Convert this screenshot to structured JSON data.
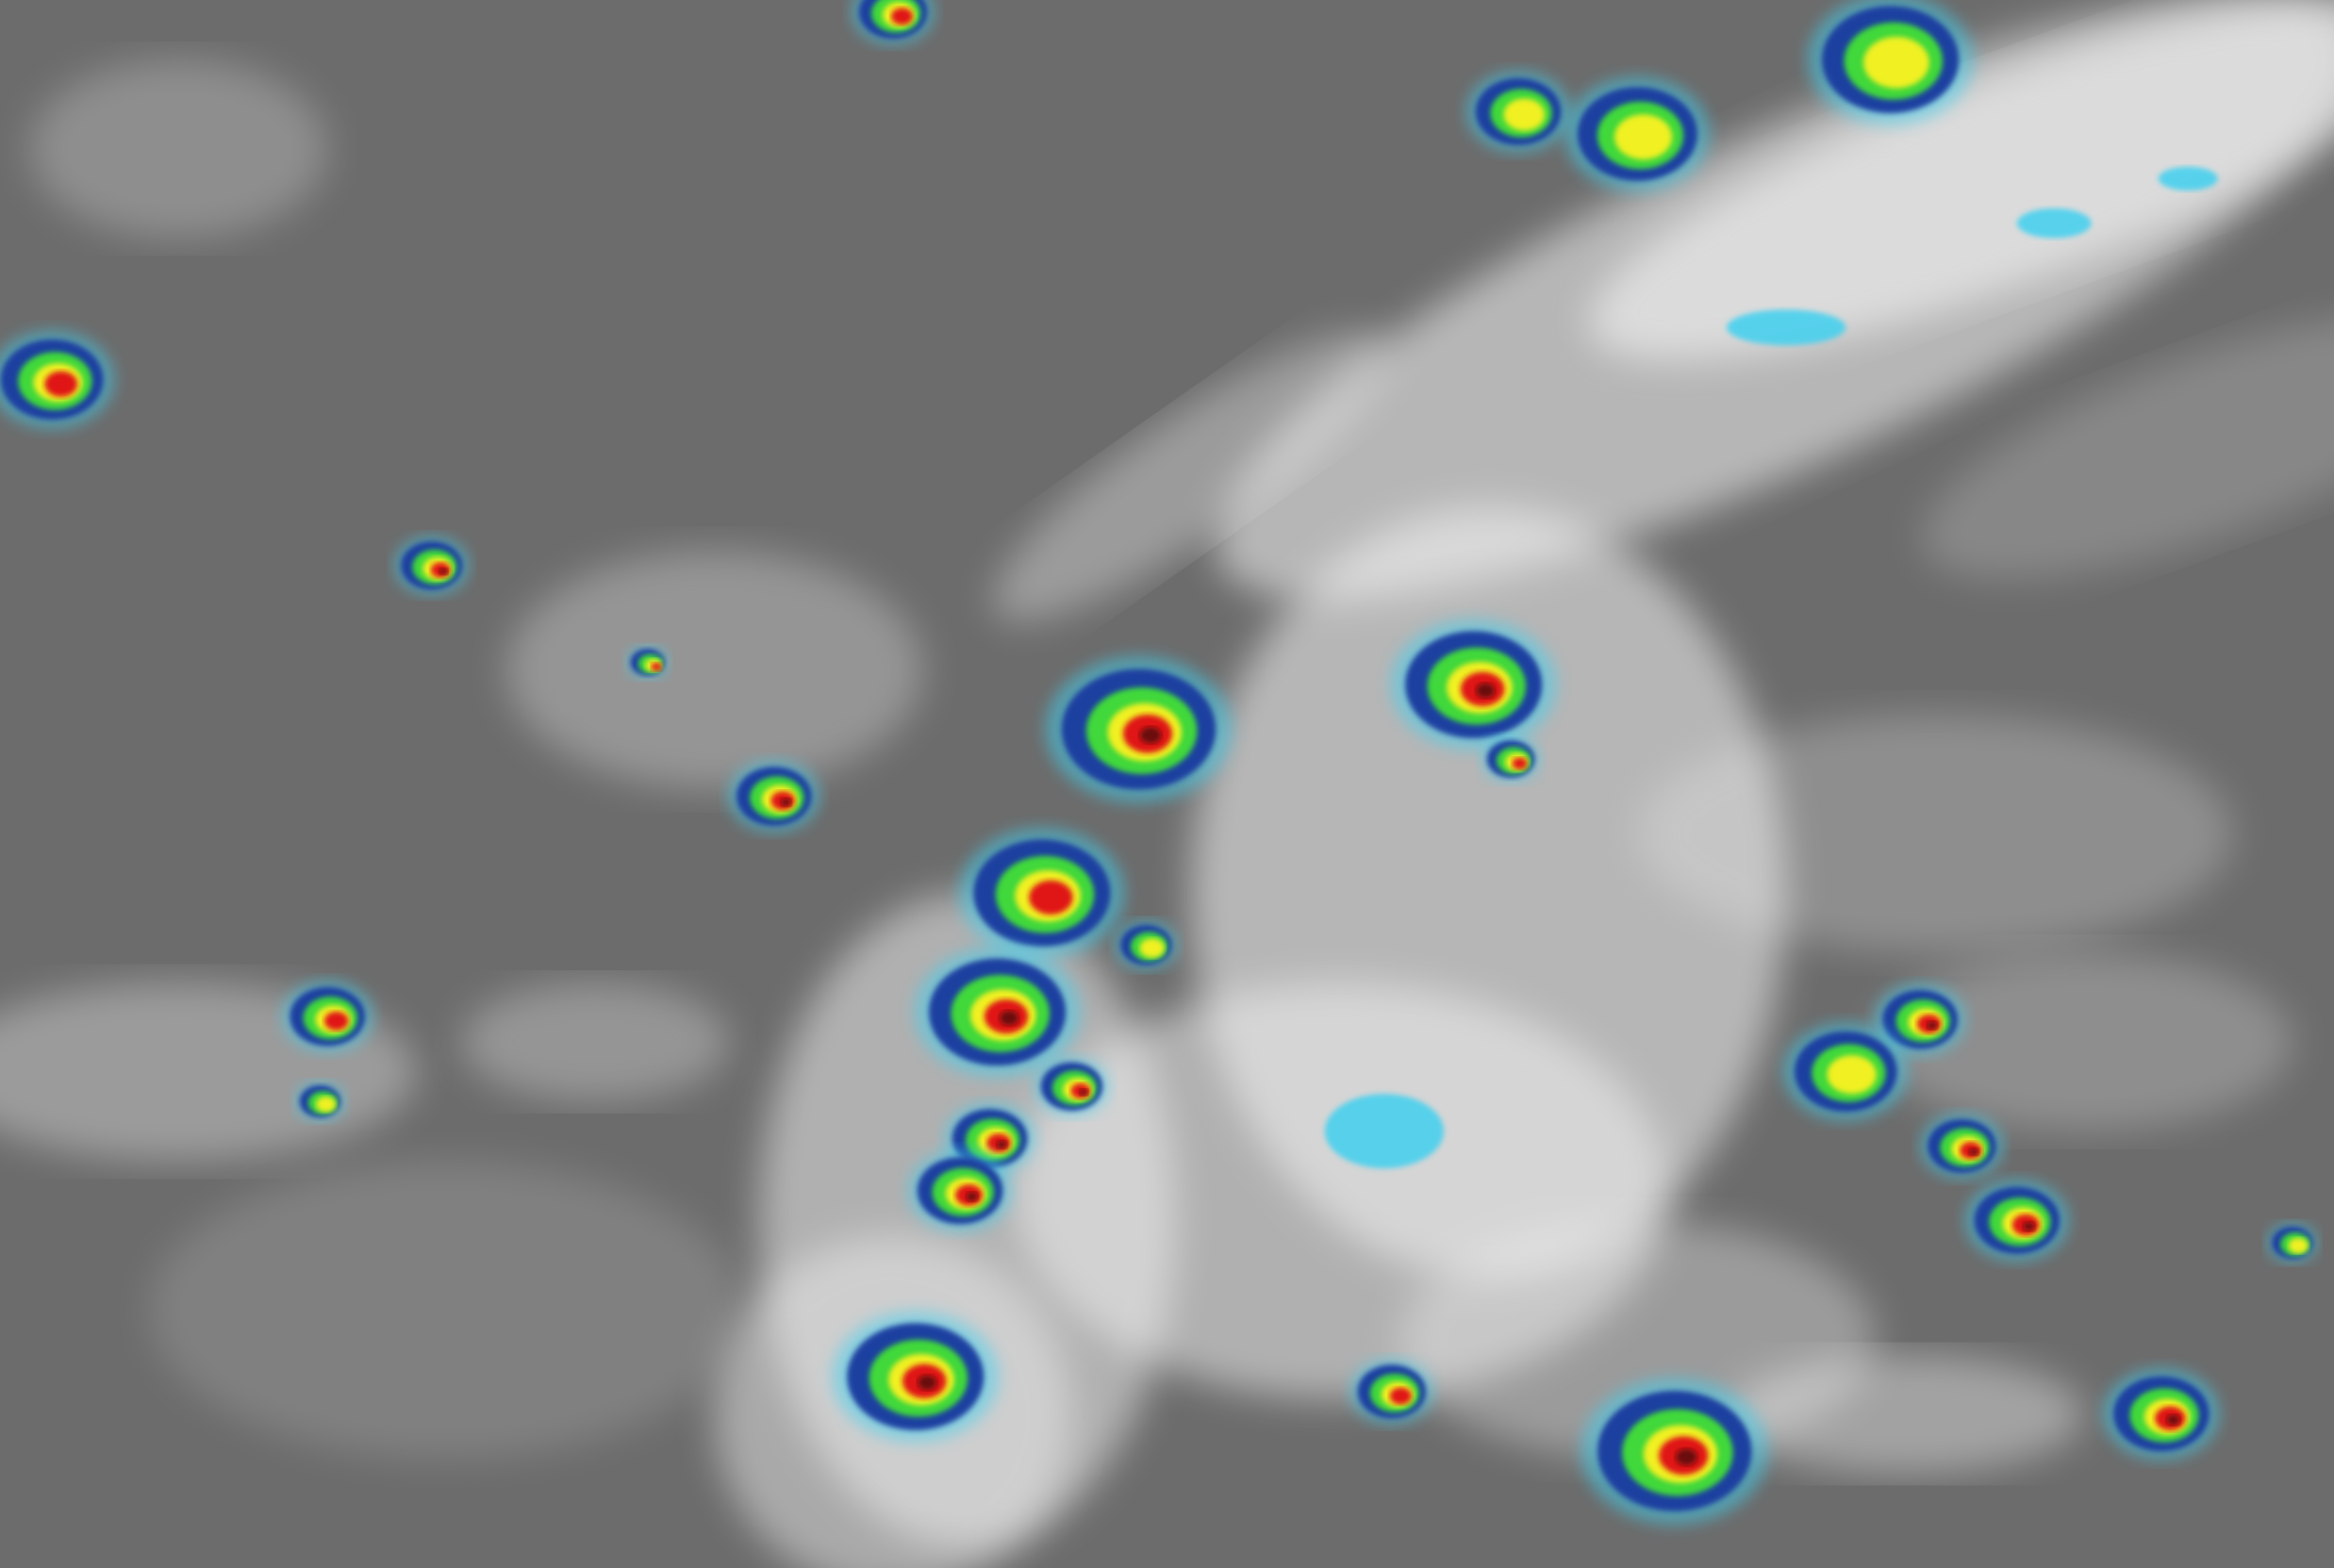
{
  "image": {
    "kind": "enhanced infrared satellite imagery",
    "colors": {
      "background_cloud_free": "#6c6c6c",
      "low_cloud": "#d8d8d8",
      "high_cloud": "#f4f4f4",
      "cold_top_cyan": "#3fd0f0",
      "cold_top_blue": "#1a3fa0",
      "colder_green": "#3fd83a",
      "colder_yellow": "#f0f020",
      "coldest_red": "#e01818",
      "coldest_core": "#6a0808"
    }
  }
}
